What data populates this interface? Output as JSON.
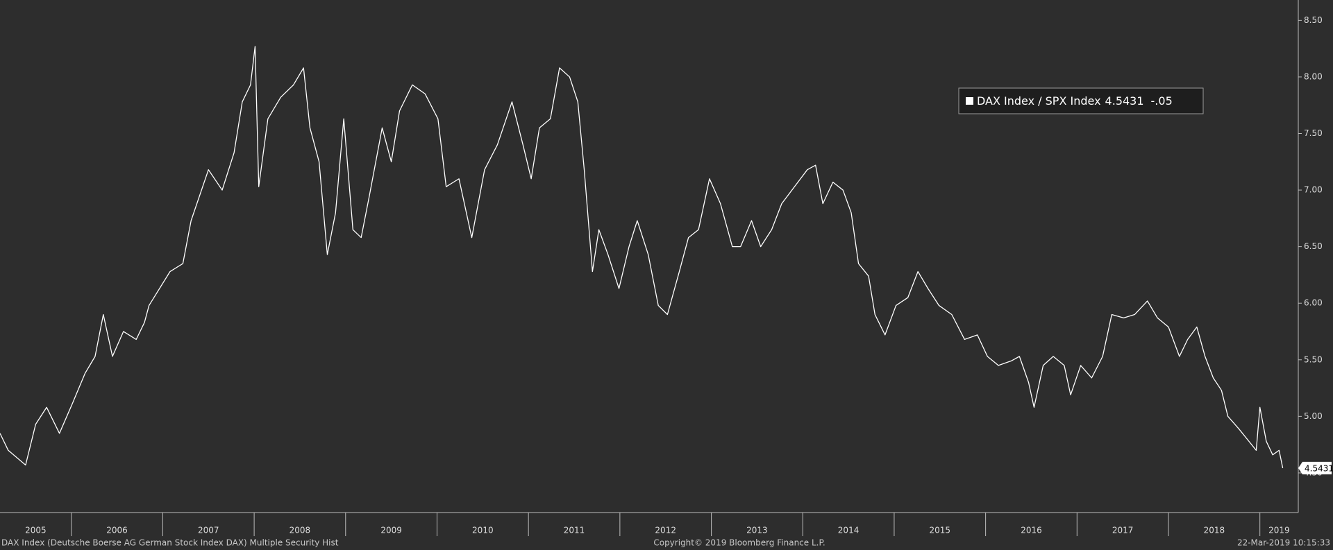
{
  "chart_data": {
    "type": "line",
    "x": [
      2005.22,
      2005.31,
      2005.5,
      2005.61,
      2005.73,
      2005.87,
      2006.01,
      2006.15,
      2006.26,
      2006.35,
      2006.45,
      2006.57,
      2006.71,
      2006.8,
      2006.85,
      2007.08,
      2007.22,
      2007.31,
      2007.5,
      2007.65,
      2007.78,
      2007.87,
      2007.96,
      2008.01,
      2008.05,
      2008.15,
      2008.29,
      2008.43,
      2008.54,
      2008.61,
      2008.71,
      2008.8,
      2008.89,
      2008.98,
      2009.08,
      2009.17,
      2009.26,
      2009.4,
      2009.5,
      2009.59,
      2009.73,
      2009.87,
      2010.01,
      2010.1,
      2010.24,
      2010.38,
      2010.52,
      2010.66,
      2010.82,
      2010.94,
      2011.03,
      2011.12,
      2011.24,
      2011.34,
      2011.45,
      2011.54,
      2011.61,
      2011.7,
      2011.77,
      2011.87,
      2011.99,
      2012.1,
      2012.19,
      2012.31,
      2012.42,
      2012.52,
      2012.65,
      2012.75,
      2012.86,
      2012.98,
      2013.1,
      2013.23,
      2013.32,
      2013.44,
      2013.54,
      2013.66,
      2013.77,
      2013.91,
      2014.05,
      2014.14,
      2014.22,
      2014.33,
      2014.44,
      2014.53,
      2014.61,
      2014.72,
      2014.79,
      2014.9,
      2015.02,
      2015.15,
      2015.26,
      2015.37,
      2015.49,
      2015.63,
      2015.77,
      2015.91,
      2016.02,
      2016.14,
      2016.28,
      2016.37,
      2016.47,
      2016.53,
      2016.63,
      2016.74,
      2016.86,
      2016.93,
      2017.04,
      2017.16,
      2017.28,
      2017.38,
      2017.51,
      2017.63,
      2017.77,
      2017.88,
      2018.0,
      2018.12,
      2018.21,
      2018.31,
      2018.4,
      2018.49,
      2018.58,
      2018.65,
      2018.77,
      2018.88,
      2018.96,
      2019.0,
      2019.07,
      2019.14,
      2019.21,
      2019.25
    ],
    "series": [
      {
        "name": "DAX Index / SPX Index",
        "color": "#ffffff",
        "values": [
          4.85,
          4.7,
          4.57,
          4.93,
          5.08,
          4.85,
          5.11,
          5.38,
          5.53,
          5.9,
          5.53,
          5.75,
          5.68,
          5.83,
          5.98,
          6.28,
          6.35,
          6.73,
          7.18,
          7.0,
          7.33,
          7.78,
          7.93,
          8.27,
          7.03,
          7.63,
          7.82,
          7.93,
          8.08,
          7.55,
          7.25,
          6.43,
          6.8,
          7.63,
          6.65,
          6.58,
          6.95,
          7.55,
          7.25,
          7.7,
          7.93,
          7.85,
          7.63,
          7.03,
          7.1,
          6.58,
          7.18,
          7.4,
          7.78,
          7.4,
          7.1,
          7.55,
          7.63,
          8.08,
          8.0,
          7.78,
          7.18,
          6.28,
          6.65,
          6.43,
          6.13,
          6.5,
          6.73,
          6.43,
          5.98,
          5.9,
          6.28,
          6.58,
          6.65,
          7.1,
          6.88,
          6.5,
          6.5,
          6.73,
          6.5,
          6.65,
          6.88,
          7.03,
          7.18,
          7.22,
          6.88,
          7.07,
          7.0,
          6.8,
          6.35,
          6.24,
          5.9,
          5.72,
          5.98,
          6.05,
          6.28,
          6.13,
          5.98,
          5.9,
          5.68,
          5.72,
          5.53,
          5.45,
          5.49,
          5.53,
          5.3,
          5.08,
          5.45,
          5.53,
          5.45,
          5.19,
          5.45,
          5.34,
          5.53,
          5.9,
          5.87,
          5.9,
          6.02,
          5.87,
          5.79,
          5.53,
          5.68,
          5.79,
          5.53,
          5.34,
          5.23,
          5.0,
          4.89,
          4.78,
          4.7,
          5.08,
          4.78,
          4.66,
          4.7,
          4.5431
        ]
      }
    ],
    "change_label": "-.05",
    "xlim": [
      2005.22,
      2019.42
    ],
    "xticks": [
      2005,
      2006,
      2007,
      2008,
      2009,
      2010,
      2011,
      2012,
      2013,
      2014,
      2015,
      2016,
      2017,
      2018,
      2019
    ],
    "ylim": [
      4.15,
      8.68
    ],
    "yticks": [
      {
        "value": 4.5,
        "label": "4.50"
      },
      {
        "value": 5,
        "label": "5.00"
      },
      {
        "value": 5.5,
        "label": "5.50"
      },
      {
        "value": 6,
        "label": "6.00"
      },
      {
        "value": 6.5,
        "label": "6.50"
      },
      {
        "value": 7,
        "label": "7.00"
      },
      {
        "value": 7.5,
        "label": "7.50"
      },
      {
        "value": 8,
        "label": "8.00"
      },
      {
        "value": 8.5,
        "label": "8.50"
      }
    ],
    "y_axis_side": "right"
  },
  "footer": {
    "left": "DAX Index (Deutsche Boerse AG German Stock Index DAX) Multiple Security Hist",
    "center": "Copyright© 2019 Bloomberg Finance L.P.",
    "right": "22-Mar-2019 10:15:33"
  }
}
